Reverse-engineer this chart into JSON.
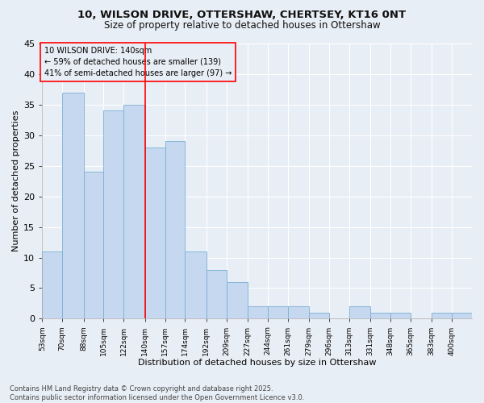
{
  "title_line1": "10, WILSON DRIVE, OTTERSHAW, CHERTSEY, KT16 0NT",
  "title_line2": "Size of property relative to detached houses in Ottershaw",
  "xlabel": "Distribution of detached houses by size in Ottershaw",
  "ylabel": "Number of detached properties",
  "bar_color": "#c5d8f0",
  "bar_edge_color": "#7bafd4",
  "annotation_line_color": "red",
  "annotation_text": "10 WILSON DRIVE: 140sqm\n← 59% of detached houses are smaller (139)\n41% of semi-detached houses are larger (97) →",
  "property_value": 140,
  "categories": [
    "53sqm",
    "70sqm",
    "88sqm",
    "105sqm",
    "122sqm",
    "140sqm",
    "157sqm",
    "174sqm",
    "192sqm",
    "209sqm",
    "227sqm",
    "244sqm",
    "261sqm",
    "279sqm",
    "296sqm",
    "313sqm",
    "331sqm",
    "348sqm",
    "365sqm",
    "383sqm",
    "400sqm"
  ],
  "bin_edges": [
    53,
    70,
    88,
    105,
    122,
    140,
    157,
    174,
    192,
    209,
    227,
    244,
    261,
    279,
    296,
    313,
    331,
    348,
    365,
    383,
    400,
    417
  ],
  "values": [
    11,
    37,
    24,
    34,
    35,
    28,
    29,
    11,
    8,
    6,
    2,
    2,
    2,
    1,
    0,
    2,
    1,
    1,
    0,
    1,
    1
  ],
  "ylim": [
    0,
    45
  ],
  "yticks": [
    0,
    5,
    10,
    15,
    20,
    25,
    30,
    35,
    40,
    45
  ],
  "background_color": "#e8eef5",
  "grid_color": "#ffffff",
  "footnote": "Contains HM Land Registry data © Crown copyright and database right 2025.\nContains public sector information licensed under the Open Government Licence v3.0."
}
